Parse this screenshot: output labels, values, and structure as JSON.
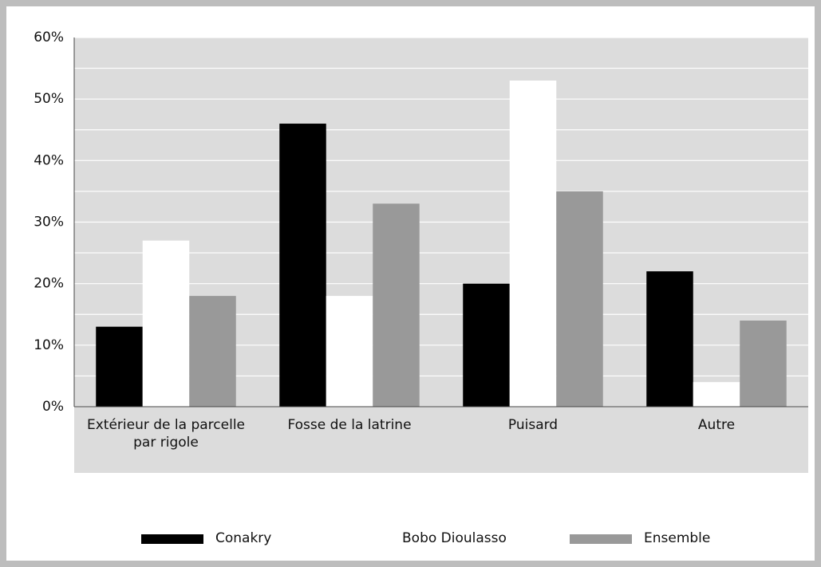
{
  "chart_data": {
    "type": "bar",
    "categories": [
      "Extérieur de la parcelle par rigole",
      "Fosse de la latrine",
      "Puisard",
      "Autre"
    ],
    "series": [
      {
        "name": "Conakry",
        "color": "#000000",
        "values": [
          13,
          46,
          20,
          22
        ]
      },
      {
        "name": "Bobo Dioulasso",
        "color": "#ffffff",
        "values": [
          27,
          18,
          53,
          4
        ]
      },
      {
        "name": "Ensemble",
        "color": "#999999",
        "values": [
          18,
          33,
          35,
          14
        ]
      }
    ],
    "ylim": [
      0,
      60
    ],
    "yticks": [
      {
        "value": 0,
        "label": "0%"
      },
      {
        "value": 10,
        "label": "10%"
      },
      {
        "value": 20,
        "label": "20%"
      },
      {
        "value": 30,
        "label": "30%"
      },
      {
        "value": 40,
        "label": "40%"
      },
      {
        "value": 50,
        "label": "50%"
      },
      {
        "value": 60,
        "label": "60%"
      }
    ],
    "minor_yticks": [
      5,
      15,
      25,
      35,
      45,
      55
    ],
    "grid": true,
    "legend": "bottom"
  }
}
